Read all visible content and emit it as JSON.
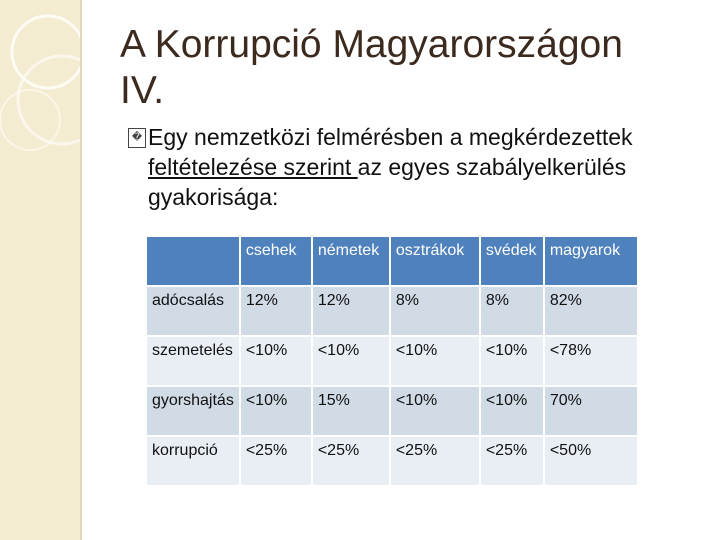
{
  "slide": {
    "title_line1": "A Korrupció Magyarországon",
    "title_line2": "IV.",
    "bullet_prefix_glyph": "�",
    "bullet_part1": "Egy nemzetközi felmérésben a megkérdezettek ",
    "bullet_underlined": "feltételezése szerint ",
    "bullet_part2": "az egyes szabályelkerülés gyakorisága:"
  },
  "table": {
    "headers": [
      "",
      "csehek",
      "németek",
      "osztrákok",
      "svédek",
      "magyarok"
    ],
    "rows": [
      [
        "adócsalás",
        "12%",
        "12%",
        "8%",
        "8%",
        "82%"
      ],
      [
        "szemetelés",
        "<10%",
        "<10%",
        "<10%",
        "<10%",
        "<78%"
      ],
      [
        "gyorshajtás",
        "<10%",
        "15%",
        "<10%",
        "<10%",
        "70%"
      ],
      [
        "korrupció",
        "<25%",
        "<25%",
        "<25%",
        "<25%",
        "<50%"
      ]
    ]
  },
  "colors": {
    "header_bg": "#4f81bd",
    "row_odd": "#d0dbe6",
    "row_even": "#e9eef4",
    "sidebar": "#f4ecd0",
    "title_text": "#3d2a1e"
  }
}
